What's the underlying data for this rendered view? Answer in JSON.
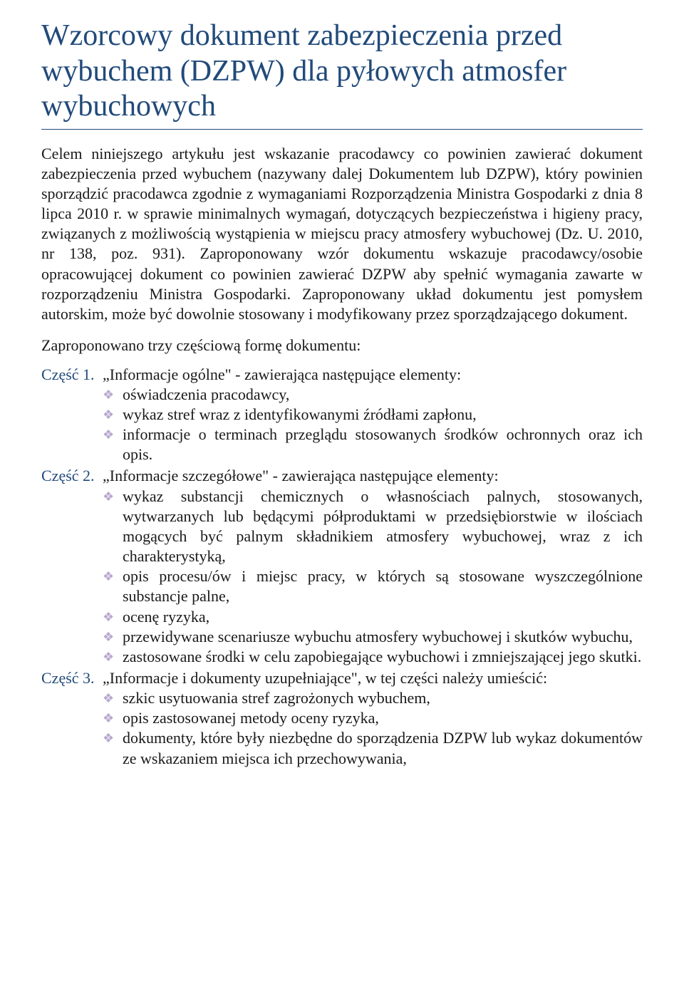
{
  "title": "Wzorcowy dokument zabezpieczenia przed wybuchem (DZPW) dla pyłowych atmosfer wybuchowych",
  "intro": "Celem niniejszego artykułu jest wskazanie pracodawcy co powinien zawierać dokument zabezpieczenia przed wybuchem (nazywany dalej Dokumentem lub DZPW), który powinien sporządzić pracodawca zgodnie z wymaganiami Rozporządzenia Ministra Gospodarki z dnia 8 lipca 2010 r. w sprawie minimalnych wymagań, dotyczących bezpieczeństwa i higieny pracy, związanych z możliwością wystąpienia w miejscu pracy atmosfery wybuchowej (Dz. U. 2010, nr 138, poz. 931). Zaproponowany wzór dokumentu wskazuje pracodawcy/osobie opracowującej dokument co powinien zawierać DZPW aby spełnić wymagania zawarte w rozporządzeniu Ministra Gospodarki. Zaproponowany układ dokumentu jest pomysłem autorskim, może być dowolnie stosowany i modyfikowany przez sporządzającego dokument.",
  "subheading": "Zaproponowano trzy częściową formę dokumentu:",
  "parts": [
    {
      "label": "Część 1.",
      "heading": "„Informacje ogólne\" - zawierająca następujące elementy:",
      "items": [
        "oświadczenia pracodawcy,",
        "wykaz stref wraz z identyfikowanymi źródłami zapłonu,",
        "informacje o terminach przeglądu stosowanych środków ochronnych oraz ich opis."
      ]
    },
    {
      "label": "Część 2.",
      "heading": "„Informacje szczegółowe\" - zawierająca następujące elementy:",
      "items": [
        "wykaz substancji chemicznych o własnościach palnych, stosowanych, wytwarzanych lub będącymi półproduktami w przedsiębiorstwie w ilościach mogących być palnym składnikiem atmosfery wybuchowej, wraz z ich charakterystyką,",
        "opis procesu/ów i miejsc pracy, w których są stosowane wyszczególnione substancje palne,",
        "ocenę ryzyka,",
        "przewidywane scenariusze wybuchu atmosfery wybuchowej i skutków wybuchu,",
        "zastosowane środki w celu zapobiegające wybuchowi i zmniejszającej jego skutki."
      ]
    },
    {
      "label": "Część 3.",
      "heading": "„Informacje i dokumenty uzupełniające\", w tej części należy umieścić:",
      "items": [
        "szkic usytuowania stref zagrożonych wybuchem,",
        "opis zastosowanej metody oceny ryzyka,",
        "dokumenty, które były niezbędne do sporządzenia DZPW lub wykaz dokumentów ze wskazaniem miejsca ich przechowywania,"
      ]
    }
  ],
  "colors": {
    "title_color": "#214a7a",
    "text_color": "#1a1a1a",
    "part_label_color": "#214a7a",
    "bullet_color": "#b8a8d0",
    "background": "#ffffff"
  },
  "typography": {
    "title_fontsize": 42,
    "body_fontsize": 22,
    "font_family": "Garamond, Georgia, serif"
  },
  "bullet_glyph": "❖"
}
